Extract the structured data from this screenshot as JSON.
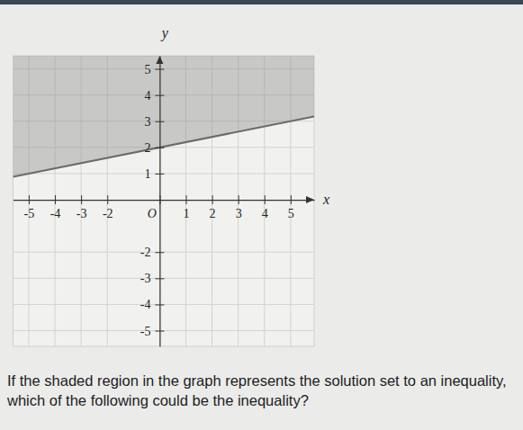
{
  "chart_data": {
    "type": "inequality",
    "x_label": "x",
    "y_label": "y",
    "xlim": [
      -5.6,
      5.9
    ],
    "ylim": [
      -5.6,
      5.5
    ],
    "xticks": [
      -5,
      -4,
      -3,
      -2,
      {
        "value": 0,
        "label": "O"
      },
      1,
      2,
      3,
      4,
      5
    ],
    "yticks": [
      -5,
      -4,
      -3,
      -2,
      1,
      2,
      3,
      4,
      5
    ],
    "grid": true,
    "series": [
      {
        "x": [
          -5.6,
          5.9
        ],
        "values": [
          0.88,
          3.18
        ],
        "color": "#6a6a6a"
      }
    ]
  },
  "question": "If the shaded region in the graph represents the solution set to an inequality, which of the following could be the inequality?"
}
